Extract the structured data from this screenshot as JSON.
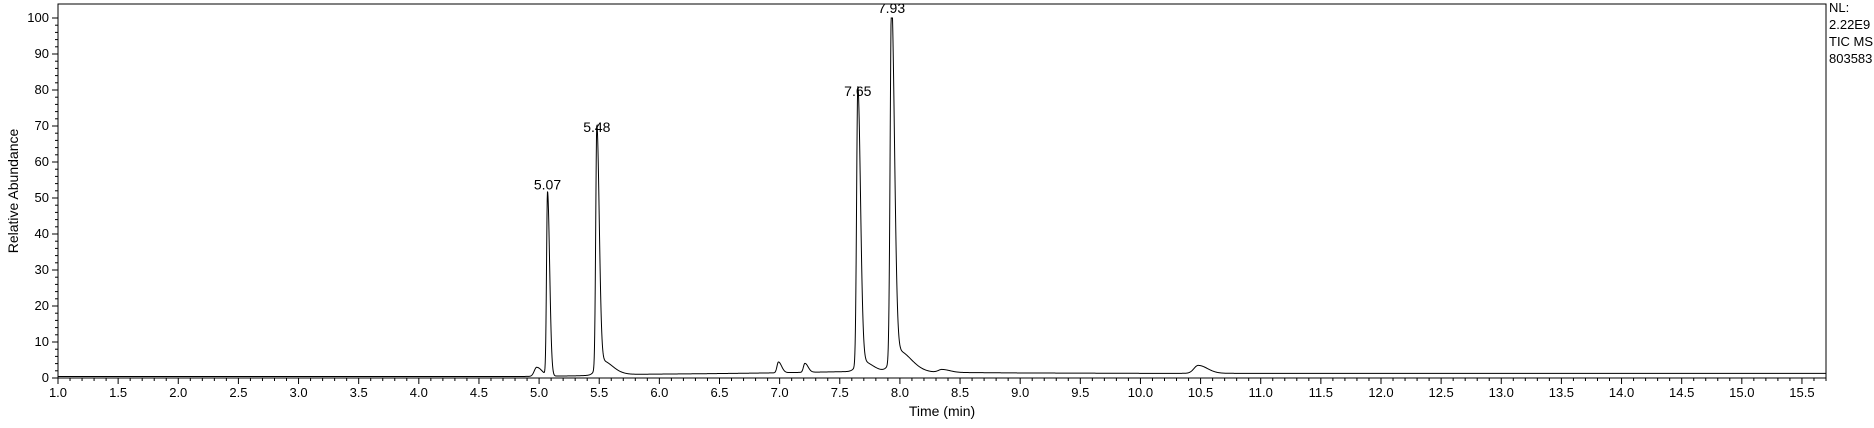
{
  "chart_data": {
    "type": "line",
    "xlabel": "Time (min)",
    "ylabel": "Relative Abundance",
    "xlim": [
      1.0,
      15.7
    ],
    "ylim": [
      0,
      100
    ],
    "x_ticks": [
      "1.0",
      "1.5",
      "2.0",
      "2.5",
      "3.0",
      "3.5",
      "4.0",
      "4.5",
      "5.0",
      "5.5",
      "6.0",
      "6.5",
      "7.0",
      "7.5",
      "8.0",
      "8.5",
      "9.0",
      "9.5",
      "10.0",
      "10.5",
      "11.0",
      "11.5",
      "12.0",
      "12.5",
      "13.0",
      "13.5",
      "14.0",
      "14.5",
      "15.0",
      "15.5"
    ],
    "y_ticks": [
      "0",
      "10",
      "20",
      "30",
      "40",
      "50",
      "60",
      "70",
      "80",
      "90",
      "100"
    ],
    "info": [
      "NL:",
      "2.22E9",
      "TIC  MS",
      "803583"
    ],
    "series": [
      {
        "baseline": [
          [
            1.0,
            0.4
          ],
          [
            4.8,
            0.4
          ],
          [
            5.3,
            0.6
          ],
          [
            5.7,
            1.0
          ],
          [
            6.4,
            1.2
          ],
          [
            6.9,
            1.4
          ],
          [
            7.6,
            1.8
          ],
          [
            8.2,
            1.6
          ],
          [
            9.0,
            1.4
          ],
          [
            10.0,
            1.3
          ],
          [
            11.0,
            1.3
          ],
          [
            15.7,
            1.3
          ]
        ],
        "peaks": [
          {
            "rt": 4.98,
            "height": 2.5,
            "width": 0.02
          },
          {
            "rt": 5.07,
            "height": 51,
            "width": 0.008
          },
          {
            "rt": 5.48,
            "height": 67,
            "width": 0.009
          },
          {
            "rt": 5.52,
            "height": 4,
            "width": 0.04
          },
          {
            "rt": 6.99,
            "height": 3,
            "width": 0.012
          },
          {
            "rt": 7.21,
            "height": 2.5,
            "width": 0.012
          },
          {
            "rt": 7.65,
            "height": 77,
            "width": 0.01
          },
          {
            "rt": 7.68,
            "height": 3,
            "width": 0.04
          },
          {
            "rt": 7.93,
            "height": 100,
            "width": 0.011
          },
          {
            "rt": 7.98,
            "height": 6,
            "width": 0.05
          },
          {
            "rt": 8.35,
            "height": 0.8,
            "width": 0.03
          },
          {
            "rt": 10.48,
            "height": 2.2,
            "width": 0.035
          }
        ]
      }
    ],
    "peak_labels": [
      {
        "rt": 5.07,
        "y": 51,
        "label": "5.07"
      },
      {
        "rt": 5.48,
        "y": 67,
        "label": "5.48"
      },
      {
        "rt": 7.65,
        "y": 77,
        "label": "7.65"
      },
      {
        "rt": 7.93,
        "y": 100,
        "label": "7.93"
      }
    ]
  }
}
